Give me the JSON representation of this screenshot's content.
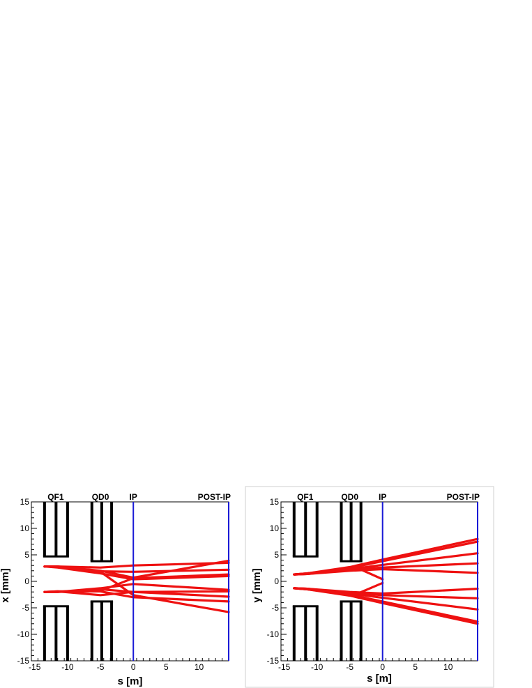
{
  "chart_data": [
    {
      "type": "line",
      "xlabel": "s [m]",
      "ylabel": "x [mm]",
      "xlim": [
        -15.5,
        14.5
      ],
      "ylim": [
        -15,
        15
      ],
      "xticks": [
        "-15",
        "-10",
        "-5",
        "0",
        "5",
        "10"
      ],
      "yticks": [
        "-15",
        "-10",
        "-5",
        "0",
        "5",
        "10",
        "15"
      ],
      "element_labels": [
        {
          "name": "QF1",
          "s": -11.8
        },
        {
          "name": "QD0",
          "s": -5
        },
        {
          "name": "IP",
          "s": 0
        },
        {
          "name": "POST-IP",
          "s": 14.5
        }
      ],
      "magnets": [
        {
          "s_min": -13.5,
          "s_max": -10.0,
          "aperture": 4.7
        },
        {
          "s_min": -6.3,
          "s_max": -3.3,
          "aperture": 3.8
        }
      ],
      "vertical_lines": [
        0,
        14.5
      ],
      "colors": {
        "tracks": "#ee1111",
        "markers": "#1a1ad6",
        "magnets": "#000000"
      },
      "series": [
        {
          "points": [
            [
              -13.5,
              2.8
            ],
            [
              -11.5,
              2.8
            ],
            [
              -5,
              2.0
            ],
            [
              0,
              0.7
            ],
            [
              14.5,
              3.9
            ]
          ]
        },
        {
          "points": [
            [
              -13.5,
              2.8
            ],
            [
              -11.5,
              2.8
            ],
            [
              -5,
              2.6
            ],
            [
              0,
              3.0
            ],
            [
              14.5,
              3.5
            ]
          ]
        },
        {
          "points": [
            [
              -13.5,
              2.8
            ],
            [
              -11.5,
              2.7
            ],
            [
              -5,
              1.9
            ],
            [
              0,
              1.8
            ],
            [
              14.5,
              2.2
            ]
          ]
        },
        {
          "points": [
            [
              -13.5,
              2.8
            ],
            [
              -11.5,
              2.6
            ],
            [
              -5,
              1.5
            ],
            [
              0,
              0.4
            ],
            [
              14.5,
              1.0
            ]
          ]
        },
        {
          "points": [
            [
              -13.5,
              2.8
            ],
            [
              -11.5,
              2.8
            ],
            [
              -5,
              1.8
            ],
            [
              0,
              -2.6
            ],
            [
              14.5,
              -5.8
            ]
          ]
        },
        {
          "points": [
            [
              -13.5,
              -2.0
            ],
            [
              -11.5,
              -2.0
            ],
            [
              -5,
              -1.8
            ],
            [
              0,
              0.6
            ],
            [
              14.5,
              1.3
            ]
          ]
        },
        {
          "points": [
            [
              -13.5,
              -2.0
            ],
            [
              -11.5,
              -2.0
            ],
            [
              -5,
              -1.3
            ],
            [
              0,
              -0.5
            ],
            [
              14.5,
              -1.6
            ]
          ]
        },
        {
          "points": [
            [
              -13.5,
              -2.0
            ],
            [
              -11.5,
              -2.0
            ],
            [
              -5,
              -1.5
            ],
            [
              0,
              -2.0
            ],
            [
              14.5,
              -2.9
            ]
          ]
        },
        {
          "points": [
            [
              -13.5,
              -2.0
            ],
            [
              -11.5,
              -1.9
            ],
            [
              -5,
              -1.9
            ],
            [
              0,
              -3.0
            ],
            [
              14.5,
              -3.8
            ]
          ]
        },
        {
          "points": [
            [
              -13.5,
              -2.0
            ],
            [
              -11.5,
              -1.9
            ],
            [
              -5,
              -2.6
            ],
            [
              0,
              -2.0
            ],
            [
              14.5,
              -1.9
            ]
          ]
        }
      ]
    },
    {
      "type": "line",
      "xlabel": "s [m]",
      "ylabel": "y [mm]",
      "xlim": [
        -15.5,
        14.5
      ],
      "ylim": [
        -15,
        15
      ],
      "xticks": [
        "-15",
        "-10",
        "-5",
        "0",
        "5",
        "10"
      ],
      "yticks": [
        "-15",
        "-10",
        "-5",
        "0",
        "5",
        "10",
        "15"
      ],
      "element_labels": [
        {
          "name": "QF1",
          "s": -11.8
        },
        {
          "name": "QD0",
          "s": -5
        },
        {
          "name": "IP",
          "s": 0
        },
        {
          "name": "POST-IP",
          "s": 14.5
        }
      ],
      "magnets": [
        {
          "s_min": -13.5,
          "s_max": -10.0,
          "aperture": 4.7
        },
        {
          "s_min": -6.3,
          "s_max": -3.3,
          "aperture": 3.8
        }
      ],
      "vertical_lines": [
        0,
        14.5
      ],
      "colors": {
        "tracks": "#ee1111",
        "markers": "#1a1ad6",
        "magnets": "#000000"
      },
      "series": [
        {
          "points": [
            [
              -13.5,
              1.3
            ],
            [
              -11.5,
              1.5
            ],
            [
              -5,
              2.7
            ],
            [
              0,
              4.1
            ],
            [
              14.5,
              8.0
            ]
          ]
        },
        {
          "points": [
            [
              -13.5,
              1.3
            ],
            [
              -11.5,
              1.5
            ],
            [
              -5,
              2.5
            ],
            [
              0,
              3.8
            ],
            [
              14.5,
              7.5
            ]
          ]
        },
        {
          "points": [
            [
              -13.5,
              1.3
            ],
            [
              -11.5,
              1.5
            ],
            [
              -5,
              2.3
            ],
            [
              0,
              3.1
            ],
            [
              14.5,
              5.3
            ]
          ]
        },
        {
          "points": [
            [
              -13.5,
              1.3
            ],
            [
              -11.5,
              1.4
            ],
            [
              -5,
              2.2
            ],
            [
              0,
              2.6
            ],
            [
              14.5,
              3.4
            ]
          ]
        },
        {
          "points": [
            [
              -13.5,
              1.3
            ],
            [
              -11.5,
              1.4
            ],
            [
              -5,
              2.0
            ],
            [
              0,
              2.3
            ],
            [
              14.5,
              1.6
            ]
          ]
        },
        {
          "points": [
            [
              -13.5,
              1.3
            ],
            [
              -11.5,
              1.4
            ],
            [
              -5,
              2.3
            ],
            [
              -3.8,
              2.5
            ],
            [
              0,
              0.4
            ]
          ]
        },
        {
          "points": [
            [
              -13.5,
              -1.3
            ],
            [
              -11.5,
              -1.5
            ],
            [
              -5,
              -2.7
            ],
            [
              0,
              -4.1
            ],
            [
              14.5,
              -8.0
            ]
          ]
        },
        {
          "points": [
            [
              -13.5,
              -1.3
            ],
            [
              -11.5,
              -1.5
            ],
            [
              -5,
              -2.5
            ],
            [
              0,
              -3.8
            ],
            [
              14.5,
              -7.6
            ]
          ]
        },
        {
          "points": [
            [
              -13.5,
              -1.3
            ],
            [
              -11.5,
              -1.5
            ],
            [
              -5,
              -2.3
            ],
            [
              0,
              -3.1
            ],
            [
              14.5,
              -5.3
            ]
          ]
        },
        {
          "points": [
            [
              -13.5,
              -1.3
            ],
            [
              -11.5,
              -1.4
            ],
            [
              -5,
              -2.2
            ],
            [
              0,
              -2.6
            ],
            [
              14.5,
              -3.2
            ]
          ]
        },
        {
          "points": [
            [
              -13.5,
              -1.3
            ],
            [
              -11.5,
              -1.4
            ],
            [
              -5,
              -2.0
            ],
            [
              0,
              -2.3
            ],
            [
              14.5,
              -1.4
            ]
          ]
        },
        {
          "points": [
            [
              -13.5,
              -1.3
            ],
            [
              -11.5,
              -1.4
            ],
            [
              -5,
              -2.4
            ],
            [
              -3.8,
              -2.3
            ],
            [
              0,
              -0.3
            ]
          ]
        }
      ]
    }
  ]
}
